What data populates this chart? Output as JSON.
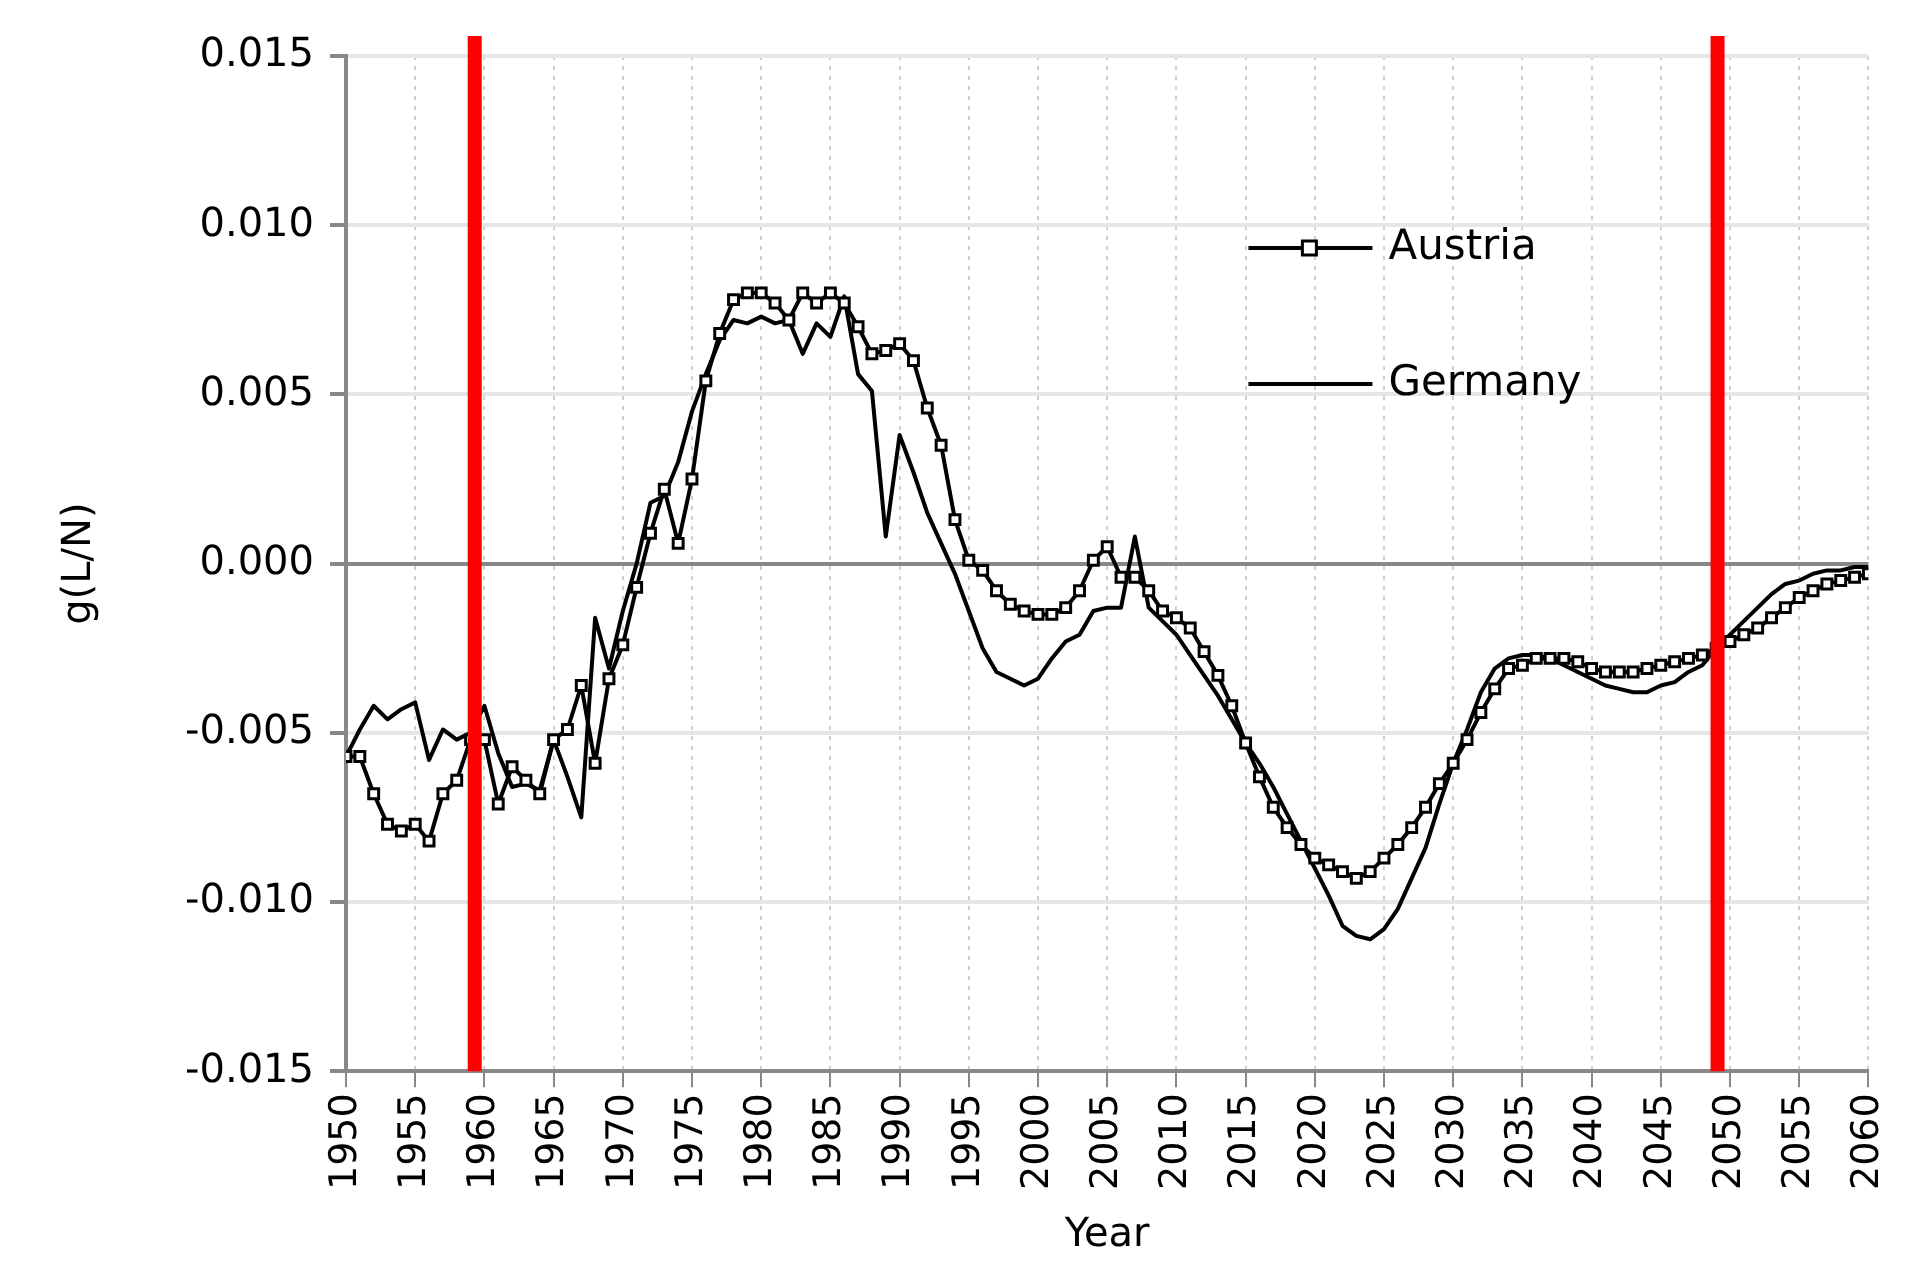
{
  "chart_data": {
    "type": "line",
    "xlabel": "Year",
    "ylabel": "g(L/N)",
    "x": [
      1950,
      1951,
      1952,
      1953,
      1954,
      1955,
      1956,
      1957,
      1958,
      1959,
      1960,
      1961,
      1962,
      1963,
      1964,
      1965,
      1966,
      1967,
      1968,
      1969,
      1970,
      1971,
      1972,
      1973,
      1974,
      1975,
      1976,
      1977,
      1978,
      1979,
      1980,
      1981,
      1982,
      1983,
      1984,
      1985,
      1986,
      1987,
      1988,
      1989,
      1990,
      1991,
      1992,
      1993,
      1994,
      1995,
      1996,
      1997,
      1998,
      1999,
      2000,
      2001,
      2002,
      2003,
      2004,
      2005,
      2006,
      2007,
      2008,
      2009,
      2010,
      2011,
      2012,
      2013,
      2014,
      2015,
      2016,
      2017,
      2018,
      2019,
      2020,
      2021,
      2022,
      2023,
      2024,
      2025,
      2026,
      2027,
      2028,
      2029,
      2030,
      2031,
      2032,
      2033,
      2034,
      2035,
      2036,
      2037,
      2038,
      2039,
      2040,
      2041,
      2042,
      2043,
      2044,
      2045,
      2046,
      2047,
      2048,
      2049,
      2050,
      2051,
      2052,
      2053,
      2054,
      2055,
      2056,
      2057,
      2058,
      2059,
      2060
    ],
    "series": [
      {
        "name": "Austria",
        "color": "#000000",
        "marker": "square",
        "values": [
          -0.0057,
          -0.0057,
          -0.0068,
          -0.0077,
          -0.0079,
          -0.0077,
          -0.0082,
          -0.0068,
          -0.0064,
          -0.0052,
          -0.0052,
          -0.0071,
          -0.006,
          -0.0064,
          -0.0068,
          -0.0052,
          -0.0049,
          -0.0036,
          -0.0059,
          -0.0034,
          -0.0024,
          -0.0007,
          0.0009,
          0.0022,
          0.0006,
          0.0025,
          0.0054,
          0.0068,
          0.0078,
          0.008,
          0.008,
          0.0077,
          0.0072,
          0.008,
          0.0077,
          0.008,
          0.0077,
          0.007,
          0.0062,
          0.0063,
          0.0065,
          0.006,
          0.0046,
          0.0035,
          0.0013,
          0.0001,
          -0.0002,
          -0.0008,
          -0.0012,
          -0.0014,
          -0.0015,
          -0.0015,
          -0.0013,
          -0.0008,
          0.0001,
          0.0005,
          -0.0004,
          -0.0004,
          -0.0008,
          -0.0014,
          -0.0016,
          -0.0019,
          -0.0026,
          -0.0033,
          -0.0042,
          -0.0053,
          -0.0063,
          -0.0072,
          -0.0078,
          -0.0083,
          -0.0087,
          -0.0089,
          -0.0091,
          -0.0093,
          -0.0091,
          -0.0087,
          -0.0083,
          -0.0078,
          -0.0072,
          -0.0065,
          -0.0059,
          -0.0052,
          -0.0044,
          -0.0037,
          -0.0031,
          -0.003,
          -0.0028,
          -0.0028,
          -0.0028,
          -0.0029,
          -0.0031,
          -0.0032,
          -0.0032,
          -0.0032,
          -0.0031,
          -0.003,
          -0.0029,
          -0.0028,
          -0.0027,
          -0.0025,
          -0.0023,
          -0.0021,
          -0.0019,
          -0.0016,
          -0.0013,
          -0.001,
          -0.0008,
          -0.0006,
          -0.0005,
          -0.0004,
          -0.0003
        ]
      },
      {
        "name": "Germany",
        "color": "#000000",
        "marker": "none",
        "values": [
          -0.0057,
          -0.0049,
          -0.0042,
          -0.0046,
          -0.0043,
          -0.0041,
          -0.0058,
          -0.0049,
          -0.0052,
          -0.005,
          -0.0042,
          -0.0056,
          -0.0066,
          -0.0065,
          -0.0067,
          -0.0052,
          -0.0063,
          -0.0075,
          -0.0016,
          -0.0031,
          -0.0014,
          0,
          0.0018,
          0.002,
          0.003,
          0.0045,
          0.0056,
          0.0066,
          0.0072,
          0.0071,
          0.0073,
          0.0071,
          0.0072,
          0.0062,
          0.0071,
          0.0067,
          0.0079,
          0.0056,
          0.0051,
          0.0008,
          0.0038,
          0.0027,
          0.0015,
          0.0006,
          -0.0003,
          -0.0014,
          -0.0025,
          -0.0032,
          -0.0034,
          -0.0036,
          -0.0034,
          -0.0028,
          -0.0023,
          -0.0021,
          -0.0014,
          -0.0013,
          -0.0013,
          0.0008,
          -0.0013,
          -0.0017,
          -0.0021,
          -0.0027,
          -0.0033,
          -0.0039,
          -0.0046,
          -0.0053,
          -0.0059,
          -0.0066,
          -0.0074,
          -0.0082,
          -0.009,
          -0.0098,
          -0.0107,
          -0.011,
          -0.0111,
          -0.0108,
          -0.0102,
          -0.0093,
          -0.0084,
          -0.0071,
          -0.0059,
          -0.0049,
          -0.0038,
          -0.0031,
          -0.0028,
          -0.0027,
          -0.0027,
          -0.0028,
          -0.003,
          -0.0032,
          -0.0034,
          -0.0036,
          -0.0037,
          -0.0038,
          -0.0038,
          -0.0036,
          -0.0035,
          -0.0032,
          -0.003,
          -0.0025,
          -0.0021,
          -0.0017,
          -0.0013,
          -0.0009,
          -0.0006,
          -0.0005,
          -0.0003,
          -0.0002,
          -0.0002,
          -0.0001,
          -0.0001
        ]
      }
    ],
    "xlim": [
      1950,
      2060
    ],
    "xticks": [
      1950,
      1955,
      1960,
      1965,
      1970,
      1975,
      1980,
      1985,
      1990,
      1995,
      2000,
      2005,
      2010,
      2015,
      2020,
      2025,
      2030,
      2035,
      2040,
      2045,
      2050,
      2055,
      2060
    ],
    "ylim": [
      -0.015,
      0.015
    ],
    "yticks": [
      {
        "value": -0.015,
        "label": "-0.015"
      },
      {
        "value": -0.01,
        "label": "-0.010"
      },
      {
        "value": -0.005,
        "label": "-0.005"
      },
      {
        "value": 0,
        "label": "0.000"
      },
      {
        "value": 0.005,
        "label": "0.005"
      },
      {
        "value": 0.01,
        "label": "0.010"
      },
      {
        "value": 0.015,
        "label": "0.015"
      }
    ],
    "ref_lines": [
      {
        "axis": "x",
        "value": 1959.3,
        "color": "#ff0000"
      },
      {
        "axis": "x",
        "value": 2049.1,
        "color": "#ff0000"
      }
    ],
    "grid": true,
    "legend": "top right"
  }
}
